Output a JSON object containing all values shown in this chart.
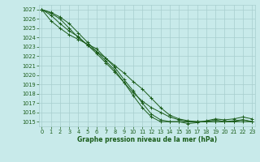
{
  "title": "Graphe pression niveau de la mer (hPa)",
  "bg_color": "#c8eaea",
  "grid_color": "#a8cece",
  "line_color": "#1a5c1a",
  "ylim": [
    1014.5,
    1027.5
  ],
  "xlim": [
    -0.3,
    23.3
  ],
  "yticks": [
    1015,
    1016,
    1017,
    1018,
    1019,
    1020,
    1021,
    1022,
    1023,
    1024,
    1025,
    1026,
    1027
  ],
  "xticks": [
    0,
    1,
    2,
    3,
    4,
    5,
    6,
    7,
    8,
    9,
    10,
    11,
    12,
    13,
    14,
    15,
    16,
    17,
    18,
    19,
    20,
    21,
    22,
    23
  ],
  "series": [
    [
      1027.0,
      1025.8,
      1025.0,
      1024.3,
      1023.8,
      1023.3,
      1022.8,
      1021.8,
      1020.8,
      1019.5,
      1018.3,
      1017.0,
      1015.8,
      1015.2,
      1015.0,
      1015.0,
      1015.0,
      1015.0,
      1015.0,
      1015.2,
      1015.0,
      1015.0,
      1015.2,
      1015.0
    ],
    [
      1027.0,
      1026.4,
      1025.5,
      1024.7,
      1024.1,
      1023.2,
      1022.3,
      1021.3,
      1020.3,
      1019.2,
      1018.1,
      1017.2,
      1016.5,
      1016.0,
      1015.5,
      1015.2,
      1015.0,
      1015.0,
      1015.0,
      1015.0,
      1015.0,
      1015.0,
      1015.0,
      1015.0
    ],
    [
      1027.0,
      1026.6,
      1026.0,
      1025.0,
      1024.0,
      1023.2,
      1022.5,
      1021.8,
      1021.0,
      1020.2,
      1019.3,
      1018.5,
      1017.5,
      1016.5,
      1015.7,
      1015.3,
      1015.1,
      1015.0,
      1015.0,
      1015.0,
      1015.0,
      1015.1,
      1015.2,
      1015.0
    ],
    [
      1027.0,
      1026.7,
      1026.2,
      1025.5,
      1024.5,
      1023.5,
      1022.5,
      1021.5,
      1020.5,
      1019.2,
      1017.8,
      1016.5,
      1015.5,
      1015.0,
      1015.0,
      1015.0,
      1014.8,
      1014.9,
      1015.1,
      1015.3,
      1015.2,
      1015.3,
      1015.5,
      1015.3
    ]
  ]
}
